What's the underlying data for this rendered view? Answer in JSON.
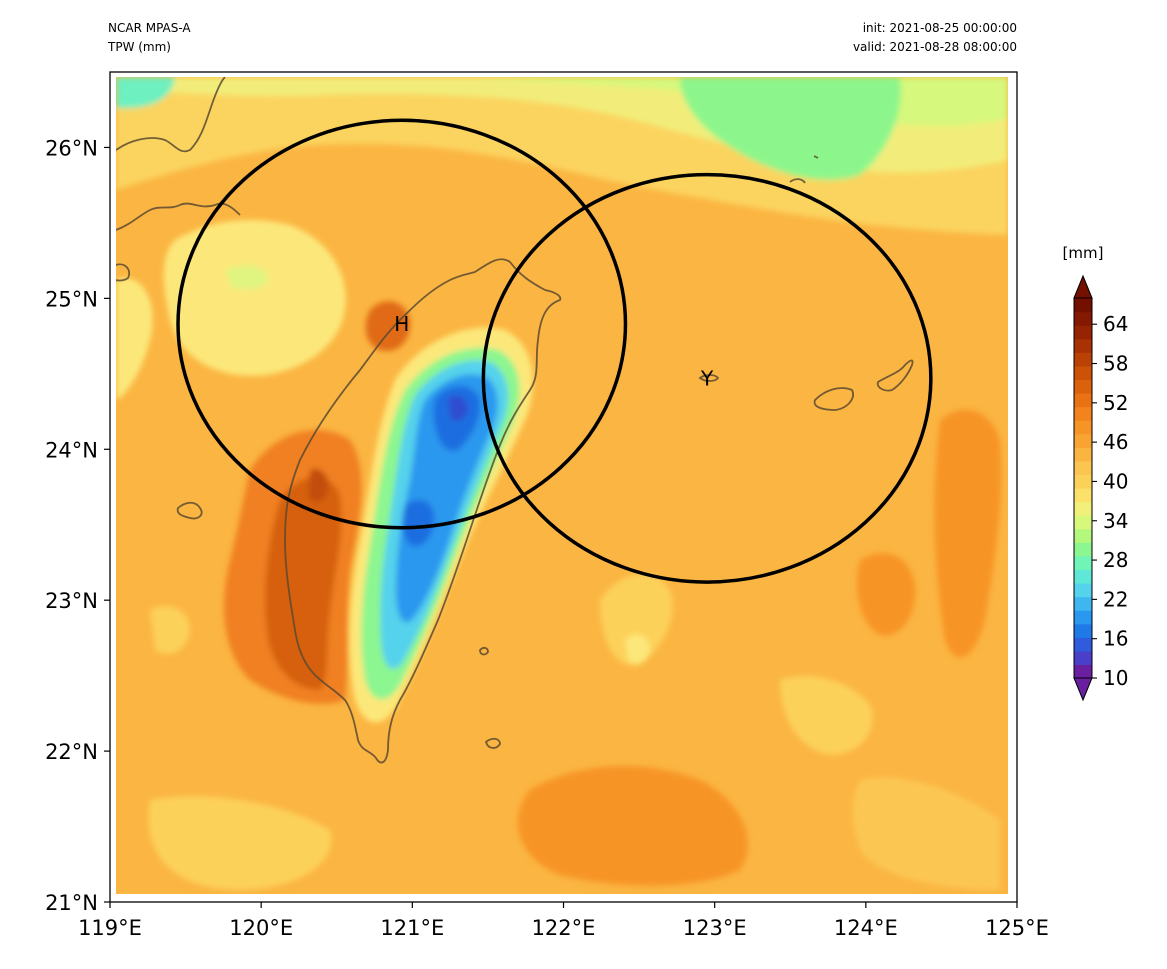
{
  "header": {
    "model": "NCAR MPAS-A",
    "variable": "TPW (mm)",
    "init": "init: 2021-08-25 00:00:00",
    "valid": "valid: 2021-08-28 08:00:00"
  },
  "map": {
    "lon_range": [
      119,
      125
    ],
    "lat_range": [
      21,
      26.5
    ],
    "x_ticks": [
      {
        "value": 119,
        "label": "119°E"
      },
      {
        "value": 120,
        "label": "120°E"
      },
      {
        "value": 121,
        "label": "121°E"
      },
      {
        "value": 122,
        "label": "122°E"
      },
      {
        "value": 123,
        "label": "123°E"
      },
      {
        "value": 124,
        "label": "124°E"
      },
      {
        "value": 125,
        "label": "125°E"
      }
    ],
    "y_ticks": [
      {
        "value": 21,
        "label": "21°N"
      },
      {
        "value": 22,
        "label": "22°N"
      },
      {
        "value": 23,
        "label": "23°N"
      },
      {
        "value": 24,
        "label": "24°N"
      },
      {
        "value": 25,
        "label": "25°N"
      },
      {
        "value": 26,
        "label": "26°N"
      }
    ],
    "circles": [
      {
        "label": "H",
        "center_lon": 120.93,
        "center_lat": 24.83,
        "radius_deg_lon": 1.48,
        "radius_deg_lat": 1.35
      },
      {
        "label": "Y",
        "center_lon": 122.95,
        "center_lat": 24.47,
        "radius_deg_lon": 1.48,
        "radius_deg_lat": 1.35
      }
    ]
  },
  "colorbar": {
    "unit": "[mm]",
    "min": 10,
    "max": 68,
    "tick_labels": [
      {
        "value": 10,
        "label": "10"
      },
      {
        "value": 16,
        "label": "16"
      },
      {
        "value": 22,
        "label": "22"
      },
      {
        "value": 28,
        "label": "28"
      },
      {
        "value": 34,
        "label": "34"
      },
      {
        "value": 40,
        "label": "40"
      },
      {
        "value": 46,
        "label": "46"
      },
      {
        "value": 52,
        "label": "52"
      },
      {
        "value": 58,
        "label": "58"
      },
      {
        "value": 64,
        "label": "64"
      }
    ],
    "colors": [
      "#6a1fa0",
      "#4a3fc8",
      "#2f5bdc",
      "#1f7ae8",
      "#2a98ee",
      "#40b6f0",
      "#55d2ec",
      "#5fe8d8",
      "#70f4b8",
      "#8cf690",
      "#b2f87c",
      "#d8f87c",
      "#f0f07a",
      "#fbe06a",
      "#fcd15a",
      "#fcc450",
      "#fab540",
      "#f9a432",
      "#f79426",
      "#f3831c",
      "#e87214",
      "#db620c",
      "#cc5208",
      "#bb4206",
      "#a93204",
      "#962402",
      "#841800",
      "#741000"
    ],
    "extend_colors": {
      "low": "#6a1fa0",
      "high": "#741000"
    }
  }
}
